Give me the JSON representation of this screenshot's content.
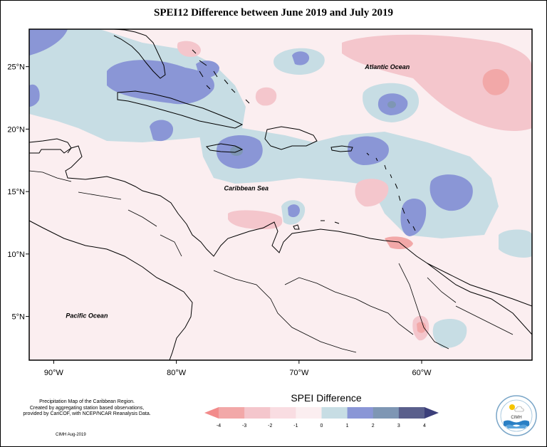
{
  "title": "SPEI12 Difference between June 2019 and July 2019",
  "map": {
    "lon_range": [
      -92,
      -51
    ],
    "lat_range": [
      1.5,
      28
    ],
    "lon_ticks": [
      {
        "lon": -90,
        "label": "90°W"
      },
      {
        "lon": -80,
        "label": "80°W"
      },
      {
        "lon": -70,
        "label": "70°W"
      },
      {
        "lon": -60,
        "label": "60°W"
      }
    ],
    "lat_ticks": [
      {
        "lat": 25,
        "label": "25°N"
      },
      {
        "lat": 20,
        "label": "20°N"
      },
      {
        "lat": 15,
        "label": "15°N"
      },
      {
        "lat": 10,
        "label": "10°N"
      },
      {
        "lat": 5,
        "label": "5°N"
      }
    ],
    "labels": [
      {
        "text": "Atlantic Ocean",
        "lon": -62.8,
        "lat": 24.8
      },
      {
        "text": "Caribbean Sea",
        "lon": -74.3,
        "lat": 15.1
      },
      {
        "text": "Pacific Ocean",
        "lon": -87.3,
        "lat": 4.9
      }
    ]
  },
  "legend": {
    "title": "SPEI Difference",
    "ticks": [
      "-4",
      "-3",
      "-2",
      "-1",
      "0",
      "1",
      "2",
      "3",
      "4"
    ],
    "colors": [
      "#f28b8b",
      "#f2a8a8",
      "#f4c6cc",
      "#f9dde2",
      "#fbeef0",
      "#c7dde4",
      "#8a96d6",
      "#7e96b4",
      "#5a5f8c",
      "#3c3f7a"
    ]
  },
  "info_text": [
    "Precipitation Map of the Caribbean Region.",
    "Created by aggregating station based observations,",
    "provided by CariCOF, with NCEP/NCAR Reanalysis Data."
  ],
  "credit": "CIMH Aug-2019",
  "logo": {
    "text": "CIMH",
    "icon": "cimh-logo-icon"
  }
}
